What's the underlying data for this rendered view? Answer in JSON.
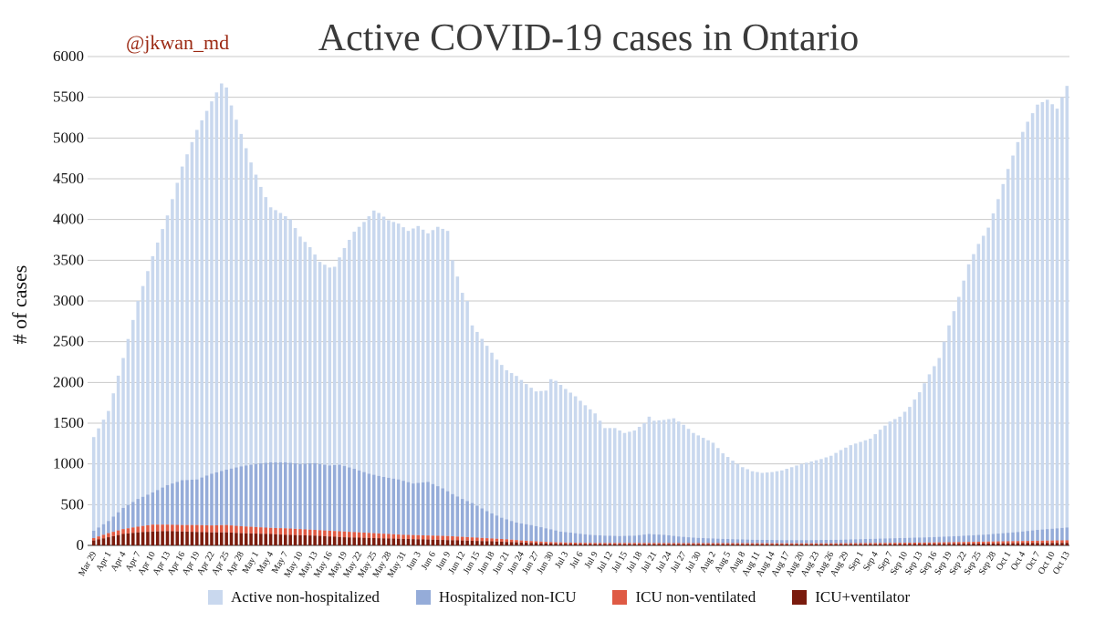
{
  "chart_data": {
    "type": "bar",
    "stacked": true,
    "title": "Active COVID-19 cases in Ontario",
    "watermark": "@jkwan_md",
    "xlabel": "",
    "ylabel": "# of cases",
    "ylim": [
      0,
      6000
    ],
    "yticks": [
      0,
      500,
      1000,
      1500,
      2000,
      2500,
      3000,
      3500,
      4000,
      4500,
      5000,
      5500,
      6000
    ],
    "grid": true,
    "legend_position": "bottom",
    "start_date": "2020-03-29",
    "end_date": "2020-10-13",
    "tick_labels": [
      "Mar 29",
      "Apr 1",
      "Apr 4",
      "Apr 7",
      "Apr 10",
      "Apr 13",
      "Apr 16",
      "Apr 19",
      "Apr 22",
      "Apr 25",
      "Apr 28",
      "May 1",
      "May 4",
      "May 7",
      "May 10",
      "May 13",
      "May 16",
      "May 19",
      "May 22",
      "May 25",
      "May 28",
      "May 31",
      "Jun 3",
      "Jun 6",
      "Jun 9",
      "Jun 12",
      "Jun 15",
      "Jun 18",
      "Jun 21",
      "Jun 24",
      "Jun 27",
      "Jun 30",
      "Jul 3",
      "Jul 6",
      "Jul 9",
      "Jul 12",
      "Jul 15",
      "Jul 18",
      "Jul 21",
      "Jul 24",
      "Jul 27",
      "Jul 30",
      "Aug 2",
      "Aug 5",
      "Aug 8",
      "Aug 11",
      "Aug 14",
      "Aug 17",
      "Aug 20",
      "Aug 23",
      "Aug 26",
      "Aug 29",
      "Sep 1",
      "Sep 4",
      "Sep 7",
      "Sep 10",
      "Sep 13",
      "Sep 16",
      "Sep 19",
      "Sep 22",
      "Sep 25",
      "Sep 28",
      "Oct 1",
      "Oct 4",
      "Oct 7",
      "Oct 10",
      "Oct 13"
    ],
    "total_anchors": [
      [
        0,
        1330
      ],
      [
        3,
        1650
      ],
      [
        6,
        2300
      ],
      [
        9,
        3000
      ],
      [
        12,
        3550
      ],
      [
        15,
        4050
      ],
      [
        18,
        4650
      ],
      [
        21,
        5100
      ],
      [
        24,
        5450
      ],
      [
        26,
        5670
      ],
      [
        27,
        5620
      ],
      [
        28,
        5400
      ],
      [
        30,
        5050
      ],
      [
        32,
        4700
      ],
      [
        34,
        4400
      ],
      [
        36,
        4150
      ],
      [
        38,
        4080
      ],
      [
        40,
        4000
      ],
      [
        42,
        3790
      ],
      [
        44,
        3660
      ],
      [
        46,
        3480
      ],
      [
        48,
        3410
      ],
      [
        49,
        3420
      ],
      [
        51,
        3650
      ],
      [
        53,
        3850
      ],
      [
        55,
        3970
      ],
      [
        57,
        4110
      ],
      [
        58,
        4080
      ],
      [
        60,
        3990
      ],
      [
        62,
        3950
      ],
      [
        64,
        3860
      ],
      [
        66,
        3920
      ],
      [
        68,
        3830
      ],
      [
        70,
        3910
      ],
      [
        72,
        3860
      ],
      [
        73,
        3500
      ],
      [
        75,
        3100
      ],
      [
        76,
        3000
      ],
      [
        77,
        2700
      ],
      [
        78,
        2620
      ],
      [
        80,
        2450
      ],
      [
        82,
        2280
      ],
      [
        84,
        2150
      ],
      [
        86,
        2080
      ],
      [
        88,
        1980
      ],
      [
        90,
        1890
      ],
      [
        92,
        1900
      ],
      [
        93,
        2040
      ],
      [
        94,
        2020
      ],
      [
        96,
        1920
      ],
      [
        98,
        1830
      ],
      [
        100,
        1720
      ],
      [
        102,
        1620
      ],
      [
        104,
        1440
      ],
      [
        106,
        1440
      ],
      [
        108,
        1380
      ],
      [
        110,
        1410
      ],
      [
        112,
        1500
      ],
      [
        113,
        1580
      ],
      [
        114,
        1530
      ],
      [
        116,
        1540
      ],
      [
        118,
        1560
      ],
      [
        120,
        1480
      ],
      [
        122,
        1380
      ],
      [
        124,
        1320
      ],
      [
        126,
        1260
      ],
      [
        128,
        1130
      ],
      [
        130,
        1040
      ],
      [
        132,
        960
      ],
      [
        134,
        910
      ],
      [
        136,
        890
      ],
      [
        138,
        900
      ],
      [
        140,
        920
      ],
      [
        142,
        960
      ],
      [
        144,
        1000
      ],
      [
        146,
        1030
      ],
      [
        148,
        1060
      ],
      [
        150,
        1100
      ],
      [
        152,
        1170
      ],
      [
        154,
        1230
      ],
      [
        156,
        1270
      ],
      [
        158,
        1310
      ],
      [
        160,
        1420
      ],
      [
        162,
        1520
      ],
      [
        164,
        1580
      ],
      [
        166,
        1700
      ],
      [
        168,
        1880
      ],
      [
        170,
        2100
      ],
      [
        172,
        2300
      ],
      [
        174,
        2700
      ],
      [
        176,
        3050
      ],
      [
        178,
        3450
      ],
      [
        180,
        3700
      ],
      [
        182,
        3900
      ],
      [
        184,
        4250
      ],
      [
        186,
        4620
      ],
      [
        188,
        4950
      ],
      [
        190,
        5200
      ],
      [
        192,
        5410
      ],
      [
        194,
        5470
      ],
      [
        196,
        5360
      ],
      [
        198,
        5640
      ],
      [
        200,
        5750
      ],
      [
        202,
        5820
      ],
      [
        203,
        5940
      ]
    ],
    "hospitalized_anchors": [
      [
        0,
        180
      ],
      [
        3,
        300
      ],
      [
        6,
        460
      ],
      [
        9,
        570
      ],
      [
        12,
        650
      ],
      [
        15,
        740
      ],
      [
        18,
        800
      ],
      [
        21,
        810
      ],
      [
        24,
        880
      ],
      [
        27,
        930
      ],
      [
        30,
        970
      ],
      [
        33,
        1000
      ],
      [
        36,
        1020
      ],
      [
        39,
        1020
      ],
      [
        42,
        1000
      ],
      [
        45,
        1010
      ],
      [
        48,
        980
      ],
      [
        50,
        990
      ],
      [
        53,
        940
      ],
      [
        56,
        880
      ],
      [
        59,
        840
      ],
      [
        62,
        810
      ],
      [
        65,
        760
      ],
      [
        68,
        780
      ],
      [
        71,
        700
      ],
      [
        73,
        630
      ],
      [
        75,
        570
      ],
      [
        77,
        520
      ],
      [
        80,
        420
      ],
      [
        83,
        340
      ],
      [
        86,
        280
      ],
      [
        89,
        250
      ],
      [
        92,
        210
      ],
      [
        95,
        170
      ],
      [
        98,
        150
      ],
      [
        101,
        130
      ],
      [
        104,
        120
      ],
      [
        107,
        115
      ],
      [
        110,
        120
      ],
      [
        113,
        140
      ],
      [
        116,
        130
      ],
      [
        119,
        110
      ],
      [
        122,
        95
      ],
      [
        128,
        80
      ],
      [
        134,
        70
      ],
      [
        140,
        65
      ],
      [
        146,
        65
      ],
      [
        152,
        70
      ],
      [
        158,
        80
      ],
      [
        164,
        90
      ],
      [
        170,
        100
      ],
      [
        176,
        115
      ],
      [
        182,
        135
      ],
      [
        188,
        165
      ],
      [
        192,
        190
      ],
      [
        196,
        210
      ],
      [
        200,
        230
      ],
      [
        203,
        240
      ]
    ],
    "icu_anchors": [
      [
        0,
        90
      ],
      [
        3,
        150
      ],
      [
        6,
        200
      ],
      [
        9,
        230
      ],
      [
        12,
        255
      ],
      [
        15,
        255
      ],
      [
        18,
        250
      ],
      [
        21,
        250
      ],
      [
        24,
        245
      ],
      [
        27,
        250
      ],
      [
        30,
        235
      ],
      [
        33,
        225
      ],
      [
        36,
        215
      ],
      [
        39,
        210
      ],
      [
        42,
        200
      ],
      [
        45,
        190
      ],
      [
        48,
        180
      ],
      [
        51,
        170
      ],
      [
        54,
        160
      ],
      [
        57,
        150
      ],
      [
        60,
        140
      ],
      [
        63,
        130
      ],
      [
        66,
        125
      ],
      [
        69,
        120
      ],
      [
        72,
        115
      ],
      [
        75,
        105
      ],
      [
        78,
        95
      ],
      [
        81,
        85
      ],
      [
        84,
        75
      ],
      [
        87,
        60
      ],
      [
        90,
        50
      ],
      [
        93,
        40
      ],
      [
        96,
        35
      ],
      [
        99,
        32
      ],
      [
        102,
        30
      ],
      [
        110,
        30
      ],
      [
        120,
        28
      ],
      [
        130,
        28
      ],
      [
        140,
        26
      ],
      [
        150,
        26
      ],
      [
        160,
        30
      ],
      [
        170,
        35
      ],
      [
        180,
        45
      ],
      [
        190,
        55
      ],
      [
        200,
        65
      ],
      [
        203,
        70
      ]
    ],
    "ventilated_anchors": [
      [
        0,
        60
      ],
      [
        3,
        100
      ],
      [
        6,
        140
      ],
      [
        9,
        160
      ],
      [
        12,
        170
      ],
      [
        15,
        175
      ],
      [
        18,
        170
      ],
      [
        21,
        165
      ],
      [
        24,
        160
      ],
      [
        27,
        160
      ],
      [
        30,
        150
      ],
      [
        33,
        145
      ],
      [
        36,
        140
      ],
      [
        39,
        130
      ],
      [
        42,
        125
      ],
      [
        45,
        120
      ],
      [
        48,
        110
      ],
      [
        51,
        100
      ],
      [
        54,
        95
      ],
      [
        57,
        90
      ],
      [
        60,
        85
      ],
      [
        63,
        80
      ],
      [
        66,
        75
      ],
      [
        69,
        70
      ],
      [
        72,
        65
      ],
      [
        75,
        60
      ],
      [
        78,
        55
      ],
      [
        81,
        50
      ],
      [
        84,
        42
      ],
      [
        87,
        35
      ],
      [
        90,
        28
      ],
      [
        93,
        22
      ],
      [
        96,
        18
      ],
      [
        100,
        16
      ],
      [
        110,
        15
      ],
      [
        120,
        14
      ],
      [
        130,
        14
      ],
      [
        140,
        13
      ],
      [
        150,
        13
      ],
      [
        160,
        15
      ],
      [
        170,
        18
      ],
      [
        180,
        22
      ],
      [
        190,
        28
      ],
      [
        200,
        32
      ],
      [
        203,
        34
      ]
    ],
    "series": [
      {
        "name": "Active non-hospitalized",
        "color": "#c9d8ee"
      },
      {
        "name": "Hospitalized non-ICU",
        "color": "#95acd9"
      },
      {
        "name": "ICU non-ventilated",
        "color": "#df5a44"
      },
      {
        "name": "ICU+ventilator",
        "color": "#7a1b0d"
      }
    ]
  }
}
